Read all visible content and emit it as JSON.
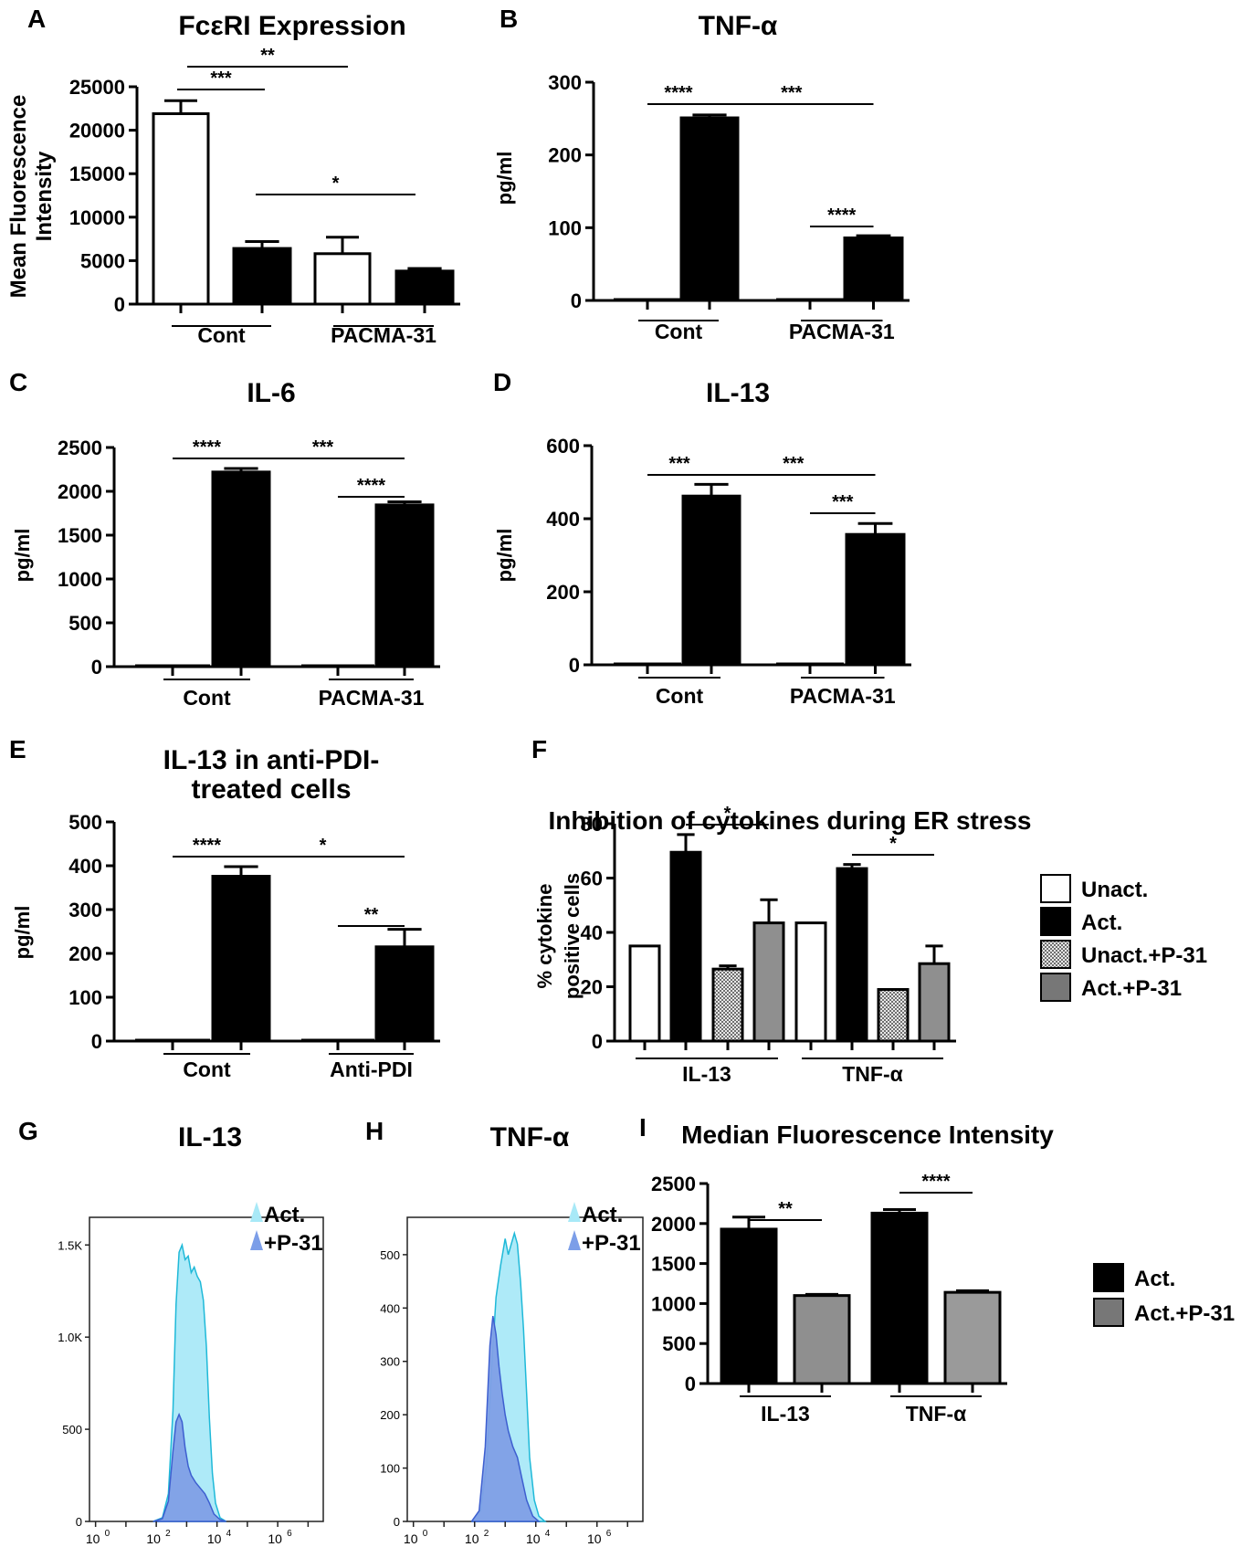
{
  "chart_data": [
    {
      "id": "A",
      "type": "bar",
      "panel_label": "A",
      "title": "FcεRI Expression",
      "ylabel": "Mean Fluorescence Intensity",
      "ylim": [
        0,
        25000
      ],
      "yticks": [
        0,
        5000,
        10000,
        15000,
        20000,
        25000
      ],
      "ytick_labels": [
        "0",
        "5000",
        "10000",
        "15000",
        "20000",
        "25000"
      ],
      "groups": [
        {
          "label": "Cont",
          "bars": [
            0,
            1
          ]
        },
        {
          "label": "PACMA-31",
          "bars": [
            2,
            3
          ]
        }
      ],
      "bars": [
        {
          "value": 21900,
          "error": 1500,
          "fill": "#ffffff"
        },
        {
          "value": 6400,
          "error": 800,
          "fill": "#000000"
        },
        {
          "value": 5800,
          "error": 1900,
          "fill": "#ffffff"
        },
        {
          "value": 3800,
          "error": 300,
          "fill": "#000000"
        }
      ],
      "significance": [
        {
          "from": 0,
          "to": 1,
          "label": "***",
          "level": 1
        },
        {
          "from": 0,
          "to": 2,
          "label": "**",
          "level": 0
        },
        {
          "from": 1,
          "to": 3,
          "label": "*",
          "level": 2
        }
      ]
    },
    {
      "id": "B",
      "type": "bar",
      "panel_label": "B",
      "title": "TNF-α",
      "ylabel": "pg/ml",
      "ylim": [
        0,
        300
      ],
      "yticks": [
        0,
        100,
        200,
        300
      ],
      "ytick_labels": [
        "0",
        "100",
        "200",
        "300"
      ],
      "groups": [
        {
          "label": "Cont",
          "bars": [
            0,
            1
          ]
        },
        {
          "label": "PACMA-31",
          "bars": [
            2,
            3
          ]
        }
      ],
      "bars": [
        {
          "value": 0,
          "error": 0,
          "fill": "#000000"
        },
        {
          "value": 251,
          "error": 4,
          "fill": "#000000"
        },
        {
          "value": 0,
          "error": 0,
          "fill": "#000000"
        },
        {
          "value": 86,
          "error": 3,
          "fill": "#000000"
        }
      ],
      "significance": [
        {
          "from": 0,
          "to": 1,
          "label": "****",
          "level": 0
        },
        {
          "from": 1,
          "to": 3,
          "label": "***",
          "level": 0
        },
        {
          "from": 2,
          "to": 3,
          "label": "****",
          "level": 1
        }
      ]
    },
    {
      "id": "C",
      "type": "bar",
      "panel_label": "C",
      "title": "IL-6",
      "ylabel": "pg/ml",
      "ylim": [
        0,
        2500
      ],
      "yticks": [
        0,
        500,
        1000,
        1500,
        2000,
        2500
      ],
      "ytick_labels": [
        "0",
        "500",
        "1000",
        "1500",
        "2000",
        "2500"
      ],
      "groups": [
        {
          "label": "Cont",
          "bars": [
            0,
            1
          ]
        },
        {
          "label": "PACMA-31",
          "bars": [
            2,
            3
          ]
        }
      ],
      "bars": [
        {
          "value": 10,
          "error": 0,
          "fill": "#000000"
        },
        {
          "value": 2220,
          "error": 40,
          "fill": "#000000"
        },
        {
          "value": 10,
          "error": 0,
          "fill": "#000000"
        },
        {
          "value": 1845,
          "error": 35,
          "fill": "#000000"
        }
      ],
      "significance": [
        {
          "from": 0,
          "to": 1,
          "label": "****",
          "level": 0
        },
        {
          "from": 1,
          "to": 3,
          "label": "***",
          "level": 0
        },
        {
          "from": 2,
          "to": 3,
          "label": "****",
          "level": 1
        }
      ]
    },
    {
      "id": "D",
      "type": "bar",
      "panel_label": "D",
      "title": "IL-13",
      "ylabel": "pg/ml",
      "ylim": [
        0,
        600
      ],
      "yticks": [
        0,
        200,
        400,
        600
      ],
      "ytick_labels": [
        "0",
        "200",
        "400",
        "600"
      ],
      "groups": [
        {
          "label": "Cont",
          "bars": [
            0,
            1
          ]
        },
        {
          "label": "PACMA-31",
          "bars": [
            2,
            3
          ]
        }
      ],
      "bars": [
        {
          "value": 0,
          "error": 0,
          "fill": "#000000"
        },
        {
          "value": 462,
          "error": 32,
          "fill": "#000000"
        },
        {
          "value": 0,
          "error": 0,
          "fill": "#000000"
        },
        {
          "value": 357,
          "error": 30,
          "fill": "#000000"
        }
      ],
      "significance": [
        {
          "from": 0,
          "to": 1,
          "label": "***",
          "level": 0
        },
        {
          "from": 1,
          "to": 3,
          "label": "***",
          "level": 0
        },
        {
          "from": 2,
          "to": 3,
          "label": "***",
          "level": 1
        }
      ]
    },
    {
      "id": "E",
      "type": "bar",
      "panel_label": "E",
      "title": "IL-13 in anti-PDI-",
      "title2": "treated cells",
      "ylabel": "pg/ml",
      "ylim": [
        0,
        500
      ],
      "yticks": [
        0,
        100,
        200,
        300,
        400,
        500
      ],
      "ytick_labels": [
        "0",
        "100",
        "200",
        "300",
        "400",
        "500"
      ],
      "groups": [
        {
          "label": "Cont",
          "bars": [
            0,
            1
          ]
        },
        {
          "label": "Anti-PDI",
          "bars": [
            2,
            3
          ]
        }
      ],
      "bars": [
        {
          "value": 0,
          "error": 0,
          "fill": "#000000"
        },
        {
          "value": 376,
          "error": 22,
          "fill": "#000000"
        },
        {
          "value": 0,
          "error": 0,
          "fill": "#000000"
        },
        {
          "value": 215,
          "error": 40,
          "fill": "#000000"
        }
      ],
      "significance": [
        {
          "from": 0,
          "to": 1,
          "label": "****",
          "level": 0
        },
        {
          "from": 1,
          "to": 3,
          "label": "*",
          "level": 0
        },
        {
          "from": 2,
          "to": 3,
          "label": "**",
          "level": 1
        }
      ]
    },
    {
      "id": "F",
      "type": "bar",
      "panel_label": "F",
      "title": "Inhibition of cytokines during ER stress",
      "ylabel": "% cytokine",
      "ylabel2": "positive cells",
      "ylim": [
        0,
        80
      ],
      "yticks": [
        0,
        20,
        40,
        60,
        80
      ],
      "ytick_labels": [
        "0",
        "20",
        "40",
        "60",
        "80"
      ],
      "groups": [
        {
          "label": "IL-13",
          "bars": [
            0,
            1,
            2,
            3
          ]
        },
        {
          "label": "TNF-α",
          "bars": [
            4,
            5,
            6,
            7
          ]
        }
      ],
      "series": [
        "Unact.",
        "Act.",
        "Unact.+P-31",
        "Act.+P-31"
      ],
      "bars": [
        {
          "value": 35,
          "error": 0,
          "fill": "#ffffff"
        },
        {
          "value": 69.5,
          "error": 6.5,
          "fill": "#000000"
        },
        {
          "value": 26.5,
          "error": 1.2,
          "fill": "pattern"
        },
        {
          "value": 43.5,
          "error": 8.5,
          "fill": "#8f8f8f"
        },
        {
          "value": 43.5,
          "error": 0,
          "fill": "#ffffff"
        },
        {
          "value": 63.5,
          "error": 1.5,
          "fill": "#000000"
        },
        {
          "value": 19,
          "error": 0,
          "fill": "pattern"
        },
        {
          "value": 28.5,
          "error": 6.5,
          "fill": "#8f8f8f"
        }
      ],
      "significance": [
        {
          "from": 1,
          "to": 3,
          "label": "*",
          "level": 0
        },
        {
          "from": 5,
          "to": 7,
          "label": "*",
          "level": 0
        }
      ],
      "legend": [
        {
          "label": "Unact.",
          "fill": "#ffffff"
        },
        {
          "label": "Act.",
          "fill": "#000000"
        },
        {
          "label": "Unact.+P-31",
          "fill": "pattern"
        },
        {
          "label": "Act.+P-31",
          "fill": "#777777"
        }
      ]
    },
    {
      "id": "G",
      "type": "area",
      "panel_label": "G",
      "title": "IL-13",
      "ymax": 1650,
      "yticks": [
        0,
        500,
        1000,
        1500
      ],
      "ytick_labels": [
        "0",
        "500",
        "1.0K",
        "1.5K"
      ],
      "xlog_range": [
        -0.2,
        7.5
      ],
      "xticks": [
        0,
        2,
        4,
        6
      ],
      "xtick_base": "10",
      "legend": [
        {
          "label": "Act.",
          "color": "#a8e9f7"
        },
        {
          "label": "+P-31",
          "color": "#7c9ee8"
        }
      ],
      "series": [
        {
          "name": "Act.",
          "fill": "#aeeaf8",
          "stroke": "#1fb9d8",
          "x": [
            1.9,
            2.2,
            2.4,
            2.55,
            2.65,
            2.75,
            2.85,
            2.95,
            3.05,
            3.15,
            3.25,
            3.35,
            3.45,
            3.55,
            3.65,
            3.75,
            3.85,
            3.95,
            4.1,
            4.3
          ],
          "y": [
            0,
            20,
            150,
            600,
            1180,
            1460,
            1500,
            1420,
            1440,
            1350,
            1380,
            1330,
            1300,
            1200,
            950,
            560,
            260,
            100,
            20,
            0
          ]
        },
        {
          "name": "+P-31",
          "fill": "#7f9fe6",
          "stroke": "#3d5fd0",
          "x": [
            1.9,
            2.2,
            2.4,
            2.55,
            2.65,
            2.75,
            2.85,
            2.95,
            3.05,
            3.15,
            3.3,
            3.45,
            3.6,
            3.75,
            3.9,
            4.1,
            4.3
          ],
          "y": [
            0,
            15,
            110,
            380,
            540,
            580,
            540,
            400,
            300,
            250,
            210,
            180,
            150,
            100,
            40,
            10,
            0
          ]
        }
      ]
    },
    {
      "id": "H",
      "type": "area",
      "panel_label": "H",
      "title": "TNF-α",
      "ymax": 570,
      "yticks": [
        0,
        100,
        200,
        300,
        400,
        500
      ],
      "ytick_labels": [
        "0",
        "100",
        "200",
        "300",
        "400",
        "500"
      ],
      "xlog_range": [
        -0.2,
        7.5
      ],
      "xticks": [
        0,
        2,
        4,
        6
      ],
      "xtick_base": "10",
      "legend": [
        {
          "label": "Act.",
          "color": "#a8e9f7"
        },
        {
          "label": "+P-31",
          "color": "#7c9ee8"
        }
      ],
      "series": [
        {
          "name": "Act.",
          "fill": "#aeeaf8",
          "stroke": "#1fb9d8",
          "x": [
            1.9,
            2.2,
            2.4,
            2.55,
            2.7,
            2.85,
            3.0,
            3.1,
            3.2,
            3.3,
            3.4,
            3.5,
            3.6,
            3.7,
            3.8,
            3.95,
            4.1,
            4.3
          ],
          "y": [
            0,
            20,
            110,
            280,
            420,
            480,
            530,
            500,
            520,
            540,
            520,
            450,
            360,
            240,
            120,
            40,
            10,
            0
          ]
        },
        {
          "name": "+P-31",
          "fill": "#7f9fe6",
          "stroke": "#3d5fd0",
          "x": [
            1.9,
            2.15,
            2.35,
            2.5,
            2.6,
            2.7,
            2.8,
            2.9,
            3.0,
            3.1,
            3.25,
            3.4,
            3.55,
            3.7,
            3.9,
            4.1
          ],
          "y": [
            0,
            20,
            140,
            330,
            385,
            350,
            290,
            240,
            200,
            170,
            140,
            120,
            80,
            40,
            10,
            0
          ]
        }
      ]
    },
    {
      "id": "I",
      "type": "bar",
      "panel_label": "I",
      "title": "Median Fluorescence Intensity",
      "ylim": [
        0,
        2500
      ],
      "yticks": [
        0,
        500,
        1000,
        1500,
        2000,
        2500
      ],
      "ytick_labels": [
        "0",
        "500",
        "1000",
        "1500",
        "2000",
        "2500"
      ],
      "groups": [
        {
          "label": "IL-13",
          "bars": [
            0,
            1
          ]
        },
        {
          "label": "TNF-α",
          "bars": [
            2,
            3
          ]
        }
      ],
      "series": [
        "Act.",
        "Act.+P-31"
      ],
      "bars": [
        {
          "value": 1930,
          "error": 150,
          "fill": "#000000"
        },
        {
          "value": 1100,
          "error": 15,
          "fill": "#8f8f8f"
        },
        {
          "value": 2130,
          "error": 45,
          "fill": "#000000"
        },
        {
          "value": 1140,
          "error": 20,
          "fill": "#9a9a9a"
        }
      ],
      "significance": [
        {
          "from": 0,
          "to": 1,
          "label": "**",
          "level": 0
        },
        {
          "from": 2,
          "to": 3,
          "label": "****",
          "level": 0
        }
      ],
      "legend": [
        {
          "label": "Act.",
          "fill": "#000000"
        },
        {
          "label": "Act.+P-31",
          "fill": "#777777"
        }
      ]
    }
  ]
}
